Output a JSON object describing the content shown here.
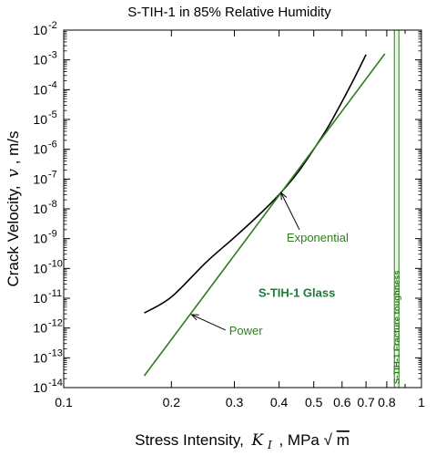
{
  "chart_data": {
    "type": "line",
    "title": "S-TIH-1 in 85% Relative Humidity",
    "xlabel": {
      "prefix": "Stress Intensity,",
      "symbol": "K",
      "subscript": "I",
      "units": ", MPa",
      "root": "√",
      "root_arg": "m"
    },
    "ylabel": {
      "prefix": "Crack Velocity,",
      "symbol": "v",
      "units": ", m/s"
    },
    "x_scale": "log",
    "y_scale": "log",
    "xlim": [
      0.1,
      1.0
    ],
    "ylim": [
      1e-14,
      0.01
    ],
    "x_ticks": [
      {
        "value": 0.1,
        "label": "0.1"
      },
      {
        "value": 0.2,
        "label": "0.2"
      },
      {
        "value": 0.3,
        "label": "0.3"
      },
      {
        "value": 0.4,
        "label": "0.4"
      },
      {
        "value": 0.5,
        "label": "0.5"
      },
      {
        "value": 0.6,
        "label": "0.6"
      },
      {
        "value": 0.7,
        "label": "0.7"
      },
      {
        "value": 0.8,
        "label": "0.8"
      },
      {
        "value": 1.0,
        "label": "1"
      }
    ],
    "y_ticks": [
      {
        "exp": -14,
        "base": "10",
        "label": "-14"
      },
      {
        "exp": -13,
        "base": "10",
        "label": "-13"
      },
      {
        "exp": -12,
        "base": "10",
        "label": "-12"
      },
      {
        "exp": -11,
        "base": "10",
        "label": "-11"
      },
      {
        "exp": -10,
        "base": "10",
        "label": "-10"
      },
      {
        "exp": -9,
        "base": "10",
        "label": "-9"
      },
      {
        "exp": -8,
        "base": "10",
        "label": "-8"
      },
      {
        "exp": -7,
        "base": "10",
        "label": "-7"
      },
      {
        "exp": -6,
        "base": "10",
        "label": "-6"
      },
      {
        "exp": -5,
        "base": "10",
        "label": "-5"
      },
      {
        "exp": -4,
        "base": "10",
        "label": "-4"
      },
      {
        "exp": -3,
        "base": "10",
        "label": "-3"
      },
      {
        "exp": -2,
        "base": "10",
        "label": "-2"
      }
    ],
    "grid": false,
    "series": [
      {
        "name": "Exponential",
        "color": "#000000",
        "points": [
          {
            "x": 0.168,
            "y": 3.2e-12
          },
          {
            "x": 0.2,
            "y": 1.1e-11
          },
          {
            "x": 0.25,
            "y": 1.6e-10
          },
          {
            "x": 0.3,
            "y": 1.1e-09
          },
          {
            "x": 0.35,
            "y": 6e-09
          },
          {
            "x": 0.4,
            "y": 3e-08
          },
          {
            "x": 0.45,
            "y": 1.6e-07
          },
          {
            "x": 0.5,
            "y": 1e-06
          },
          {
            "x": 0.55,
            "y": 6e-06
          },
          {
            "x": 0.6,
            "y": 4e-05
          },
          {
            "x": 0.65,
            "y": 0.00025
          },
          {
            "x": 0.7,
            "y": 0.0015
          }
        ]
      },
      {
        "name": "Power",
        "color": "#2e7d1e",
        "points": [
          {
            "x": 0.168,
            "y": 2.5e-14
          },
          {
            "x": 0.79,
            "y": 0.0016
          }
        ]
      }
    ],
    "annotations": [
      {
        "text": "Exponential",
        "color": "#2e7d1e",
        "label_at": {
          "x": 0.42,
          "y": 8e-10
        },
        "arrow_to": {
          "x": 0.405,
          "y": 3.5e-08
        }
      },
      {
        "text": "Power",
        "color": "#2e7d1e",
        "label_at": {
          "x": 0.29,
          "y": 6e-13
        },
        "arrow_to": {
          "x": 0.228,
          "y": 2.8e-12
        }
      },
      {
        "text": "S-TIH-1 Glass",
        "color": "#1f7a3a",
        "bold": true,
        "label_at": {
          "x": 0.35,
          "y": 1.1e-11
        }
      }
    ],
    "fracture_toughness_band": {
      "label": "S-TIH-1 Fracture toughness",
      "x_from": 0.84,
      "x_to": 0.865,
      "color": "#2e7d1e",
      "fill": "#e9f7e6"
    }
  }
}
